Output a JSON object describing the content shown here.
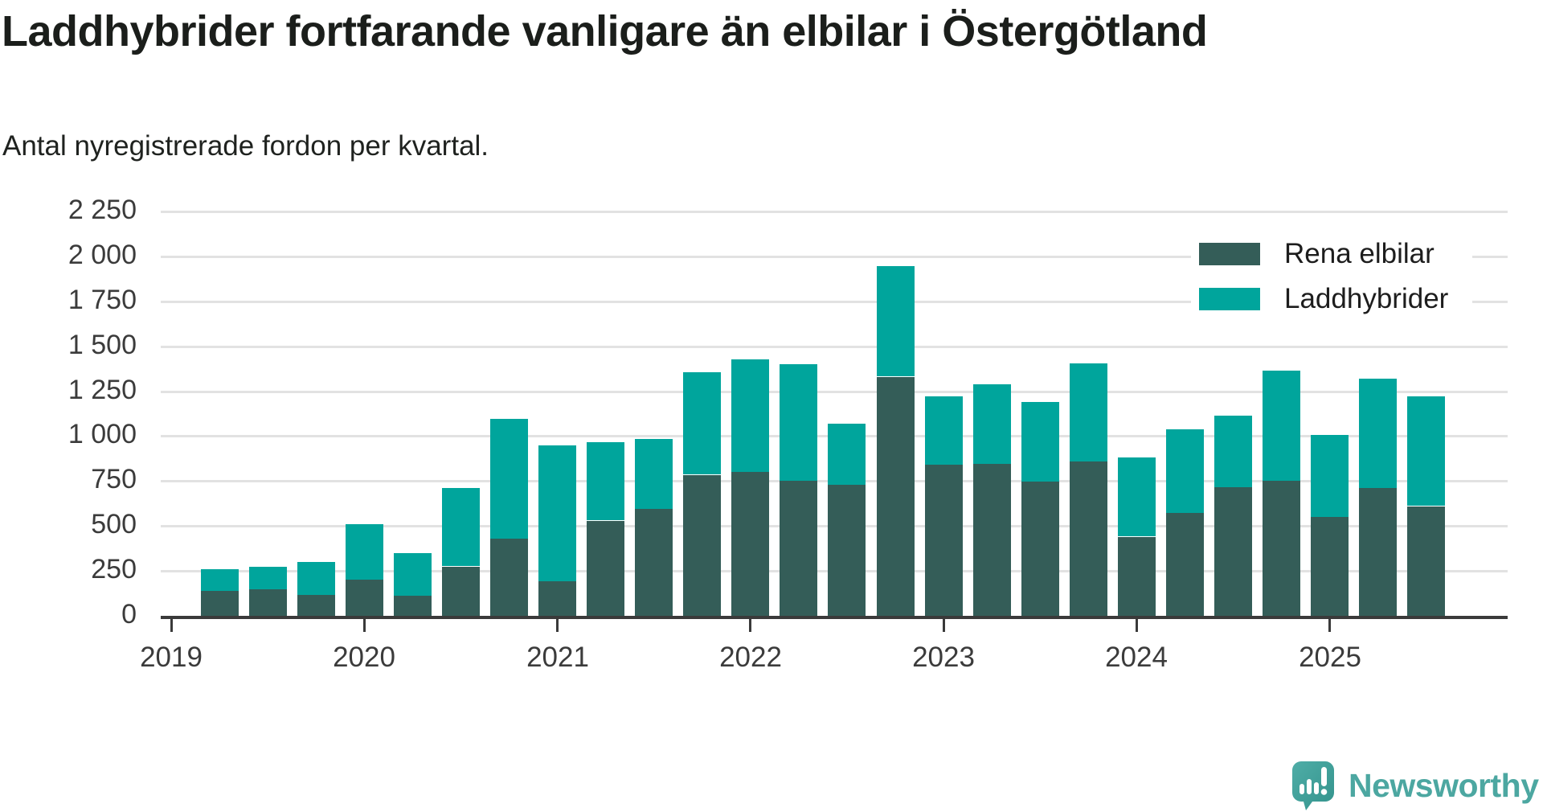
{
  "title": "Laddhybrider fortfarande vanligare än elbilar i Östergötland",
  "subtitle": "Antal nyregistrerade fordon per kvartal.",
  "colors": {
    "rena_elbilar": "#345D58",
    "laddhybrider": "#00A59C",
    "gridline": "#e2e2e2",
    "axis": "#3a3a3a",
    "brand_teal": "#4ca7a1"
  },
  "legend": {
    "items": [
      {
        "label": "Rena elbilar",
        "color": "#345D58"
      },
      {
        "label": "Laddhybrider",
        "color": "#00A59C"
      }
    ]
  },
  "branding": {
    "name": "Newsworthy"
  },
  "chart_data": {
    "type": "bar",
    "stacked": true,
    "x": [
      "2019Q2",
      "2019Q3",
      "2019Q4",
      "2020Q1",
      "2020Q2",
      "2020Q3",
      "2020Q4",
      "2021Q1",
      "2021Q2",
      "2021Q3",
      "2021Q4",
      "2022Q1",
      "2022Q2",
      "2022Q3",
      "2022Q4",
      "2023Q1",
      "2023Q2",
      "2023Q3",
      "2023Q4",
      "2024Q1",
      "2024Q2",
      "2024Q3",
      "2024Q4",
      "2025Q1",
      "2025Q2",
      "2025Q3"
    ],
    "series": [
      {
        "name": "Rena elbilar",
        "values": [
          140,
          150,
          115,
          200,
          115,
          275,
          430,
          195,
          530,
          595,
          785,
          800,
          750,
          730,
          1330,
          840,
          845,
          745,
          860,
          440,
          575,
          715,
          750,
          550,
          710,
          610
        ]
      },
      {
        "name": "Laddhybrider",
        "values": [
          120,
          125,
          185,
          310,
          235,
          435,
          665,
          755,
          435,
          390,
          570,
          625,
          650,
          340,
          615,
          380,
          445,
          445,
          545,
          440,
          465,
          400,
          615,
          455,
          610,
          610
        ]
      }
    ],
    "title": "Laddhybrider fortfarande vanligare än elbilar i Östergötland",
    "xlabel": "",
    "ylabel": "Antal nyregistrerade fordon per kvartal",
    "ylim": [
      0,
      2250
    ],
    "y_tick_step": 250,
    "y_tick_labels": [
      "0",
      "250",
      "500",
      "750",
      "1 000",
      "1 250",
      "1 500",
      "1 750",
      "2 000",
      "2 250"
    ],
    "year_ticks": [
      "2019",
      "2020",
      "2021",
      "2022",
      "2023",
      "2024",
      "2025"
    ],
    "grid": true,
    "legend_position": "top-right"
  }
}
